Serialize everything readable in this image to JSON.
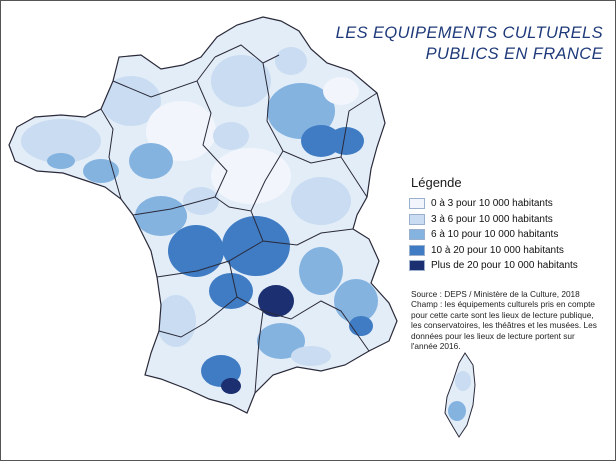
{
  "title": {
    "line1": "LES EQUIPEMENTS CULTURELS",
    "line2": "PUBLICS EN FRANCE"
  },
  "legend": {
    "title": "Légende",
    "items": [
      {
        "label": "0 à 3 pour 10 000 habitants",
        "color": "#f2f6fc"
      },
      {
        "label": "3 à 6 pour 10 000 habitants",
        "color": "#c9dcf1"
      },
      {
        "label": "6 à 10 pour 10 000 habitants",
        "color": "#84b3e0"
      },
      {
        "label": "10 à 20 pour 10 000 habitants",
        "color": "#3f7cc4"
      },
      {
        "label": "Plus de 20 pour 10 000 habitants",
        "color": "#1c2f70"
      }
    ]
  },
  "source": {
    "line1": "Source : DEPS / Ministère de la Culture, 2018",
    "line2": "Champ : les équipements culturels pris en compte",
    "line3": "pour cette carte sont les lieux de lecture publique,",
    "line4": "les conservatoires, les théâtres et les musées. Les",
    "line5": "données pour les lieux de lecture portent sur",
    "line6": "l'année 2016."
  },
  "colors": {
    "title": "#1f3a7a",
    "region_border": "#2a2a3a",
    "frame": "#555555"
  }
}
